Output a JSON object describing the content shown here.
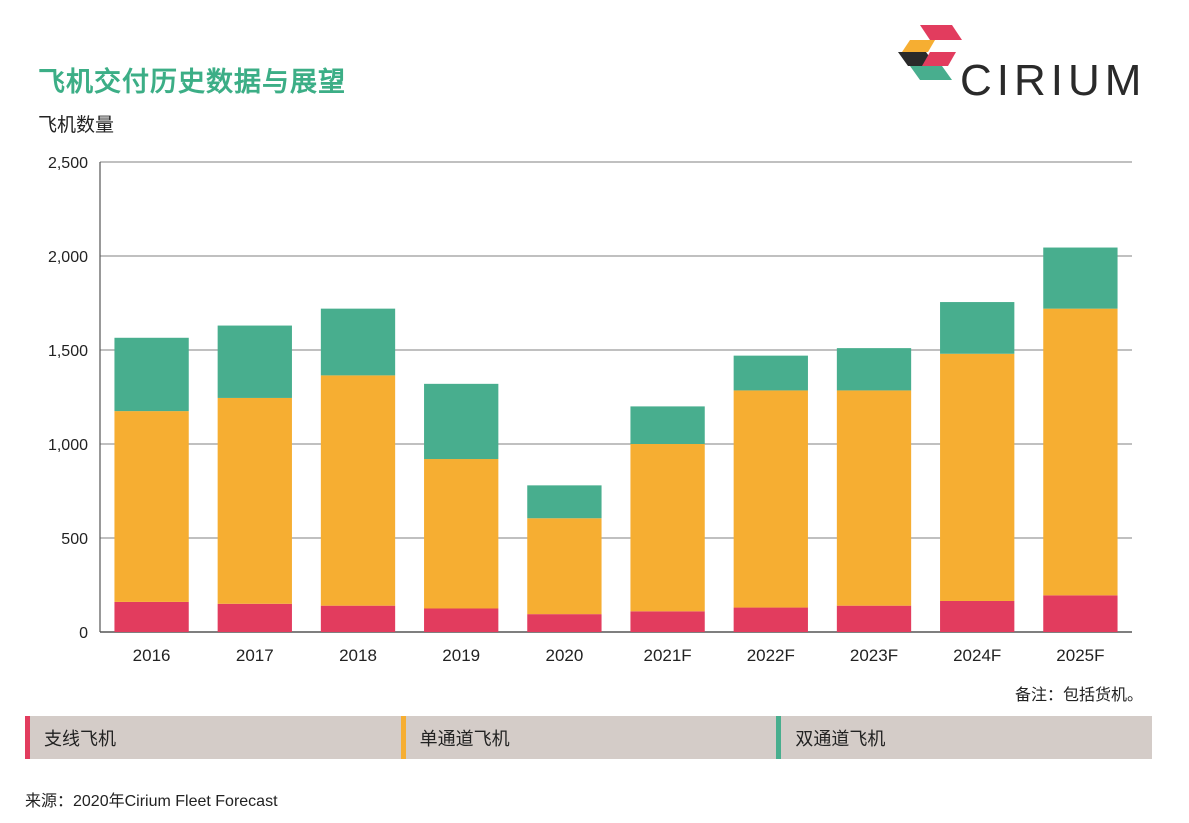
{
  "header": {
    "title": "飞机交付历史数据与展望",
    "ylabel": "飞机数量",
    "logo_text": "CIRIUM"
  },
  "colors": {
    "regional": "#e23c5e",
    "narrowbody": "#f6ae32",
    "widebody": "#48ae8e",
    "title": "#3cae86",
    "legend_bg": "#d4ccc8"
  },
  "chart_data": {
    "type": "bar",
    "stacked": true,
    "categories": [
      "2016",
      "2017",
      "2018",
      "2019",
      "2020",
      "2021F",
      "2022F",
      "2023F",
      "2024F",
      "2025F"
    ],
    "series": [
      {
        "name": "支线飞机",
        "values": [
          160,
          150,
          140,
          125,
          95,
          110,
          130,
          140,
          165,
          195
        ]
      },
      {
        "name": "单通道飞机",
        "values": [
          1015,
          1095,
          1225,
          795,
          510,
          890,
          1155,
          1145,
          1315,
          1525
        ]
      },
      {
        "name": "双通道飞机",
        "values": [
          390,
          385,
          355,
          400,
          175,
          200,
          185,
          225,
          275,
          325
        ]
      }
    ],
    "ylim": [
      0,
      2500
    ],
    "yticks": [
      0,
      500,
      1000,
      1500,
      2000,
      2500
    ],
    "ytick_labels": [
      "0",
      "500",
      "1,000",
      "1,500",
      "2,000",
      "2,500"
    ],
    "grid": true
  },
  "footer": {
    "note": "备注：包括货机。",
    "legend": [
      "支线飞机",
      "单通道飞机",
      "双通道飞机"
    ],
    "source": "来源：2020年Cirium Fleet Forecast"
  }
}
